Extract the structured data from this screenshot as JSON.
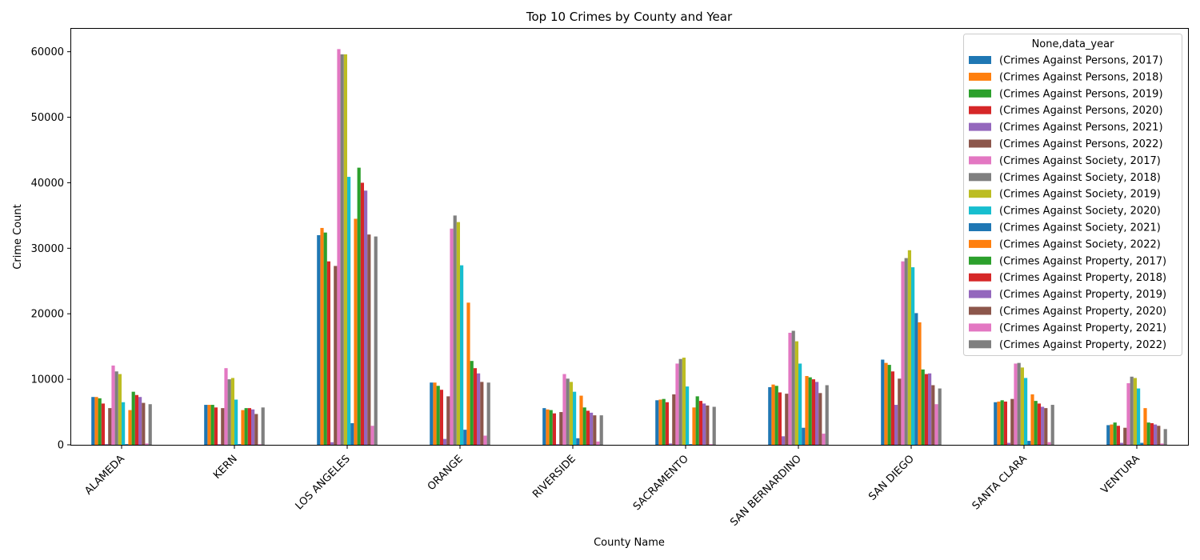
{
  "chart_data": {
    "type": "bar",
    "title": "Top 10 Crimes by County and Year",
    "xlabel": "County Name",
    "ylabel": "Crime Count",
    "ylim": [
      0,
      63500
    ],
    "yticks": [
      0,
      10000,
      20000,
      30000,
      40000,
      50000,
      60000
    ],
    "ytick_labels": [
      "0",
      "10000",
      "20000",
      "30000",
      "40000",
      "50000",
      "60000"
    ],
    "grid": false,
    "legend_title": "None,data_year",
    "legend_position": "top-right",
    "categories": [
      "ALAMEDA",
      "KERN",
      "LOS ANGELES",
      "ORANGE",
      "RIVERSIDE",
      "SACRAMENTO",
      "SAN BERNARDINO",
      "SAN DIEGO",
      "SANTA CLARA",
      "VENTURA"
    ],
    "series": [
      {
        "name": "(Crimes Against Persons, 2017)",
        "color": "#1f77b4",
        "values": [
          7300,
          6100,
          32000,
          9500,
          5600,
          6800,
          8800,
          13000,
          6500,
          3000
        ]
      },
      {
        "name": "(Crimes Against Persons, 2018)",
        "color": "#ff7f0e",
        "values": [
          7300,
          6100,
          33100,
          9500,
          5400,
          6900,
          9200,
          12500,
          6600,
          3100
        ]
      },
      {
        "name": "(Crimes Against Persons, 2019)",
        "color": "#2ca02c",
        "values": [
          7100,
          6100,
          32400,
          9000,
          5300,
          7000,
          9000,
          12200,
          6800,
          3400
        ]
      },
      {
        "name": "(Crimes Against Persons, 2020)",
        "color": "#d62728",
        "values": [
          6300,
          5700,
          28000,
          8400,
          4800,
          6500,
          8000,
          11200,
          6600,
          2900
        ]
      },
      {
        "name": "(Crimes Against Persons, 2021)",
        "color": "#9467bd",
        "values": [
          100,
          100,
          400,
          900,
          100,
          200,
          1300,
          6100,
          300,
          300
        ]
      },
      {
        "name": "(Crimes Against Persons, 2022)",
        "color": "#8c564b",
        "values": [
          5600,
          5600,
          27300,
          7400,
          5000,
          7700,
          7800,
          10100,
          7000,
          2600
        ]
      },
      {
        "name": "(Crimes Against Society, 2017)",
        "color": "#e377c2",
        "values": [
          12100,
          11700,
          60400,
          33000,
          10800,
          12400,
          17100,
          28000,
          12400,
          9400
        ]
      },
      {
        "name": "(Crimes Against Society, 2018)",
        "color": "#7f7f7f",
        "values": [
          11200,
          10000,
          59600,
          35000,
          10100,
          13100,
          17400,
          28500,
          12500,
          10400
        ]
      },
      {
        "name": "(Crimes Against Society, 2019)",
        "color": "#bcbd22",
        "values": [
          10800,
          10200,
          59600,
          34000,
          9600,
          13300,
          15800,
          29700,
          11800,
          10200
        ]
      },
      {
        "name": "(Crimes Against Society, 2020)",
        "color": "#17becf",
        "values": [
          6500,
          6900,
          40900,
          27400,
          8100,
          8900,
          12400,
          27100,
          10200,
          8600
        ]
      },
      {
        "name": "(Crimes Against Society, 2021)",
        "color": "#1f77b4",
        "values": [
          100,
          100,
          3300,
          2300,
          1000,
          100,
          2600,
          20100,
          600,
          300
        ]
      },
      {
        "name": "(Crimes Against Society, 2022)",
        "color": "#ff7f0e",
        "values": [
          5300,
          5300,
          34500,
          21700,
          7500,
          5700,
          10500,
          18700,
          7700,
          5600
        ]
      },
      {
        "name": "(Crimes Against Property, 2017)",
        "color": "#2ca02c",
        "values": [
          8100,
          5600,
          42300,
          12800,
          5700,
          7400,
          10300,
          11500,
          6700,
          3400
        ]
      },
      {
        "name": "(Crimes Against Property, 2018)",
        "color": "#d62728",
        "values": [
          7600,
          5600,
          40000,
          11700,
          5200,
          6700,
          10000,
          10800,
          6300,
          3300
        ]
      },
      {
        "name": "(Crimes Against Property, 2019)",
        "color": "#9467bd",
        "values": [
          7300,
          5400,
          38800,
          10900,
          4900,
          6300,
          9600,
          10900,
          5800,
          3100
        ]
      },
      {
        "name": "(Crimes Against Property, 2020)",
        "color": "#8c564b",
        "values": [
          6400,
          4700,
          32100,
          9600,
          4500,
          6000,
          7900,
          9100,
          5600,
          2900
        ]
      },
      {
        "name": "(Crimes Against Property, 2021)",
        "color": "#e377c2",
        "values": [
          200,
          100,
          2900,
          1400,
          500,
          100,
          1700,
          6200,
          400,
          200
        ]
      },
      {
        "name": "(Crimes Against Property, 2022)",
        "color": "#7f7f7f",
        "values": [
          6200,
          5700,
          31800,
          9500,
          4500,
          5800,
          9100,
          8600,
          6100,
          2400
        ]
      }
    ]
  }
}
